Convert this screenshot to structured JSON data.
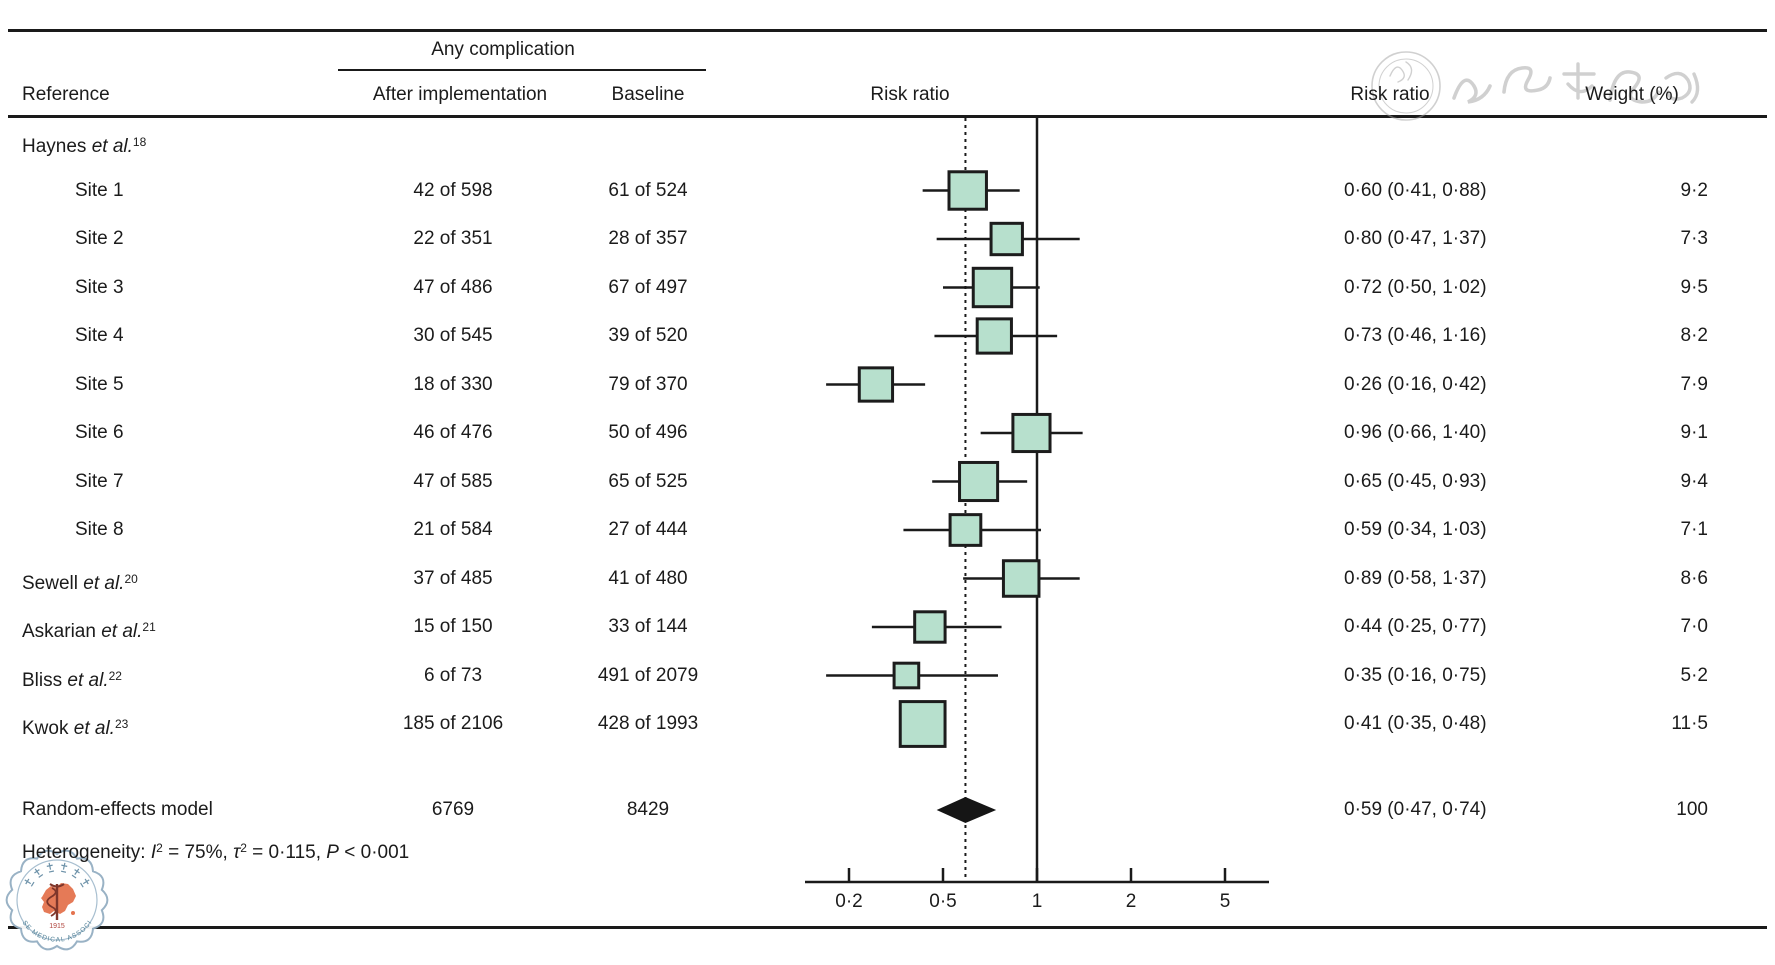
{
  "figure": {
    "headers": {
      "group_header": "Any complication",
      "reference": "Reference",
      "after": "After implementation",
      "baseline": "Baseline",
      "plot_title": "Risk ratio",
      "rr_column": "Risk ratio",
      "weight_column": "Weight (%)"
    },
    "heterogeneity": {
      "prefix": "Heterogeneity: ",
      "i_label": "I",
      "i_sup": "2",
      "i_val": " = 75%, ",
      "tau_label": "τ",
      "tau_sup": "2",
      "tau_val": " = 0·115, ",
      "p_label": "P",
      "p_val": " < 0·001"
    },
    "watermarks": {
      "bottom_logo_arc_text": "CHINESE MEDICAL ASSOCIATION",
      "bottom_logo_year": "1915"
    }
  },
  "chart_data": {
    "type": "forest",
    "effect_measure": "Risk ratio",
    "x_axis": {
      "scale": "log-ticks-evenly-spaced",
      "ticks": [
        0.2,
        0.5,
        1,
        2,
        5
      ],
      "tick_labels": [
        "0·2",
        "0·5",
        "1",
        "2",
        "5"
      ]
    },
    "reference_line": 1,
    "pooled_dotted_line": 0.59,
    "studies": [
      {
        "label_main": "Haynes ",
        "label_etal": "et al.",
        "label_sup": "18",
        "group_header": true
      },
      {
        "label_main": "Site 1",
        "indent": true,
        "after": "42 of 598",
        "baseline": "61 of 524",
        "rr": 0.6,
        "ci_lo": 0.41,
        "ci_hi": 0.88,
        "rr_text": "0·60 (0·41, 0·88)",
        "weight": 9.2,
        "weight_text": "9·2"
      },
      {
        "label_main": "Site 2",
        "indent": true,
        "after": "22 of 351",
        "baseline": "28 of 357",
        "rr": 0.8,
        "ci_lo": 0.47,
        "ci_hi": 1.37,
        "rr_text": "0·80 (0·47, 1·37)",
        "weight": 7.3,
        "weight_text": "7·3"
      },
      {
        "label_main": "Site 3",
        "indent": true,
        "after": "47 of 486",
        "baseline": "67 of 497",
        "rr": 0.72,
        "ci_lo": 0.5,
        "ci_hi": 1.02,
        "rr_text": "0·72 (0·50, 1·02)",
        "weight": 9.5,
        "weight_text": "9·5"
      },
      {
        "label_main": "Site 4",
        "indent": true,
        "after": "30 of 545",
        "baseline": "39 of 520",
        "rr": 0.73,
        "ci_lo": 0.46,
        "ci_hi": 1.16,
        "rr_text": "0·73 (0·46, 1·16)",
        "weight": 8.2,
        "weight_text": "8·2"
      },
      {
        "label_main": "Site 5",
        "indent": true,
        "after": "18 of 330",
        "baseline": "79 of 370",
        "rr": 0.26,
        "ci_lo": 0.16,
        "ci_hi": 0.42,
        "rr_text": "0·26 (0·16, 0·42)",
        "weight": 7.9,
        "weight_text": "7·9"
      },
      {
        "label_main": "Site 6",
        "indent": true,
        "after": "46 of 476",
        "baseline": "50 of 496",
        "rr": 0.96,
        "ci_lo": 0.66,
        "ci_hi": 1.4,
        "rr_text": "0·96 (0·66, 1·40)",
        "weight": 9.1,
        "weight_text": "9·1"
      },
      {
        "label_main": "Site 7",
        "indent": true,
        "after": "47 of 585",
        "baseline": "65 of 525",
        "rr": 0.65,
        "ci_lo": 0.45,
        "ci_hi": 0.93,
        "rr_text": "0·65 (0·45, 0·93)",
        "weight": 9.4,
        "weight_text": "9·4"
      },
      {
        "label_main": "Site 8",
        "indent": true,
        "after": "21 of 584",
        "baseline": "27 of 444",
        "rr": 0.59,
        "ci_lo": 0.34,
        "ci_hi": 1.03,
        "rr_text": "0·59 (0·34, 1·03)",
        "weight": 7.1,
        "weight_text": "7·1"
      },
      {
        "label_main": "Sewell ",
        "label_etal": "et al.",
        "label_sup": "20",
        "after": "37 of 485",
        "baseline": "41 of 480",
        "rr": 0.89,
        "ci_lo": 0.58,
        "ci_hi": 1.37,
        "rr_text": "0·89 (0·58, 1·37)",
        "weight": 8.6,
        "weight_text": "8·6"
      },
      {
        "label_main": "Askarian ",
        "label_etal": "et al.",
        "label_sup": "21",
        "after": "15 of 150",
        "baseline": "33 of 144",
        "rr": 0.44,
        "ci_lo": 0.25,
        "ci_hi": 0.77,
        "rr_text": "0·44 (0·25, 0·77)",
        "weight": 7.0,
        "weight_text": "7·0"
      },
      {
        "label_main": "Bliss ",
        "label_etal": "et al.",
        "label_sup": "22",
        "after": "6 of 73",
        "baseline": "491 of 2079",
        "rr": 0.35,
        "ci_lo": 0.16,
        "ci_hi": 0.75,
        "rr_text": "0·35 (0·16, 0·75)",
        "weight": 5.2,
        "weight_text": "5·2"
      },
      {
        "label_main": "Kwok ",
        "label_etal": "et al.",
        "label_sup": "23",
        "after": "185 of 2106",
        "baseline": "428 of 1993",
        "rr": 0.41,
        "ci_lo": 0.35,
        "ci_hi": 0.48,
        "rr_text": "0·41 (0·35, 0·48)",
        "weight": 11.5,
        "weight_text": "11·5"
      }
    ],
    "summary": {
      "label": "Random-effects model",
      "after": "6769",
      "baseline": "8429",
      "rr": 0.59,
      "ci_lo": 0.47,
      "ci_hi": 0.74,
      "rr_text": "0·59 (0·47, 0·74)",
      "weight_text": "100"
    },
    "colors": {
      "square_fill": "#b7e0cd",
      "square_border": "#1c1c1c",
      "diamond": "#151515",
      "line": "#1a1a1a"
    }
  }
}
